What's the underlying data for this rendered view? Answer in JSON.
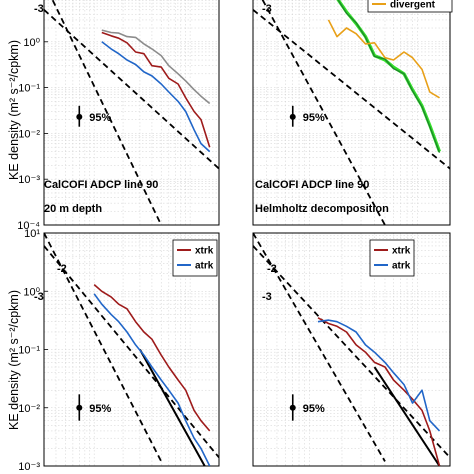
{
  "colors": {
    "xtrk": "#9e1b1b",
    "atrk": "#2166c8",
    "gray": "#8c8c8c",
    "rotational": "#1d8a2a",
    "rotational_hi": "#33e02a",
    "divergent": "#e8a018",
    "slope": "#000000"
  },
  "shared": {
    "ylabel": "KE density (m² s⁻²/cpkm)",
    "conf_label": "95%"
  },
  "chart_data": [
    {
      "id": "tl",
      "type": "line",
      "xscale": "log",
      "yscale": "log",
      "xlim": [
        0.003,
        0.2
      ],
      "ylim": [
        0.0001,
        10
      ],
      "grid": true,
      "y_ticks": [
        "10⁻⁴",
        "10⁻³",
        "10⁻²",
        "10⁻¹",
        "10⁰",
        "10¹"
      ],
      "annotations": [
        "CalCOFI ADCP line 90",
        "20 m depth",
        "-3"
      ],
      "series": [
        {
          "color_key": "gray",
          "width": 1.6,
          "x": [
            0.012,
            0.015,
            0.018,
            0.022,
            0.027,
            0.033,
            0.04,
            0.05,
            0.06,
            0.075,
            0.09,
            0.11,
            0.13,
            0.16
          ],
          "y": [
            1.8,
            1.6,
            1.55,
            1.3,
            1.25,
            0.9,
            0.7,
            0.5,
            0.3,
            0.2,
            0.14,
            0.09,
            0.065,
            0.045
          ]
        },
        {
          "color_key": "xtrk",
          "width": 1.6,
          "x": [
            0.012,
            0.015,
            0.018,
            0.022,
            0.027,
            0.033,
            0.04,
            0.05,
            0.06,
            0.075,
            0.09,
            0.11,
            0.13,
            0.16
          ],
          "y": [
            1.6,
            1.35,
            1.2,
            0.95,
            0.6,
            0.55,
            0.3,
            0.28,
            0.16,
            0.12,
            0.06,
            0.03,
            0.02,
            0.005
          ]
        },
        {
          "color_key": "atrk",
          "width": 1.6,
          "x": [
            0.012,
            0.015,
            0.018,
            0.022,
            0.027,
            0.033,
            0.04,
            0.05,
            0.06,
            0.075,
            0.09,
            0.11,
            0.13,
            0.16
          ],
          "y": [
            1.0,
            0.7,
            0.55,
            0.4,
            0.32,
            0.22,
            0.18,
            0.12,
            0.08,
            0.05,
            0.03,
            0.012,
            0.006,
            0.004
          ]
        }
      ],
      "dashed_lines": [
        {
          "x": [
            0.003,
            0.2
          ],
          "y": [
            5.0,
            0.0017
          ]
        },
        {
          "x": [
            0.003,
            0.05
          ],
          "y": [
            20.0,
            0.0001
          ]
        }
      ],
      "conf_bar": {
        "x": 0.007,
        "y_low": 0.014,
        "y_high": 0.04,
        "y_dot": 0.023
      }
    },
    {
      "id": "tr",
      "type": "line",
      "xscale": "log",
      "yscale": "log",
      "xlim": [
        0.003,
        0.2
      ],
      "ylim": [
        0.0001,
        10
      ],
      "grid": true,
      "y_ticks": [],
      "annotations": [
        "CalCOFI ADCP line 90",
        "Helmholtz decomposition",
        "-3"
      ],
      "legend": [
        {
          "label": "divergent",
          "color_key": "divergent"
        }
      ],
      "series": [
        {
          "color_key": "rotational_hi",
          "width": 3.2,
          "x": [
            0.018,
            0.022,
            0.027,
            0.033,
            0.04,
            0.05,
            0.06,
            0.075,
            0.09,
            0.11,
            0.13,
            0.16
          ],
          "y": [
            9.0,
            4.5,
            2.5,
            1.3,
            0.5,
            0.4,
            0.28,
            0.2,
            0.09,
            0.04,
            0.015,
            0.004
          ]
        },
        {
          "color_key": "rotational",
          "width": 1.4,
          "x": [
            0.018,
            0.022,
            0.027,
            0.033,
            0.04,
            0.05,
            0.06,
            0.075,
            0.09,
            0.11,
            0.13,
            0.16
          ],
          "y": [
            9.0,
            4.2,
            2.6,
            1.25,
            0.48,
            0.42,
            0.26,
            0.2,
            0.085,
            0.038,
            0.014,
            0.0038
          ]
        },
        {
          "color_key": "divergent",
          "width": 1.6,
          "x": [
            0.015,
            0.018,
            0.022,
            0.027,
            0.033,
            0.04,
            0.05,
            0.06,
            0.075,
            0.09,
            0.11,
            0.13,
            0.16
          ],
          "y": [
            3.0,
            1.3,
            2.0,
            1.5,
            0.9,
            0.95,
            0.45,
            0.4,
            0.6,
            0.45,
            0.25,
            0.08,
            0.06
          ]
        }
      ],
      "dashed_lines": [
        {
          "x": [
            0.003,
            0.2
          ],
          "y": [
            5.0,
            0.0017
          ]
        },
        {
          "x": [
            0.003,
            0.05
          ],
          "y": [
            20.0,
            0.0001
          ]
        }
      ],
      "conf_bar": {
        "x": 0.007,
        "y_low": 0.014,
        "y_high": 0.04,
        "y_dot": 0.023
      }
    },
    {
      "id": "bl",
      "type": "line",
      "xscale": "log",
      "yscale": "log",
      "xlim": [
        0.003,
        0.2
      ],
      "ylim": [
        0.001,
        10
      ],
      "grid": true,
      "y_ticks": [
        "10⁻³",
        "10⁻²",
        "10⁻¹",
        "10⁰",
        "10¹"
      ],
      "annotations": [
        "-2",
        "-3"
      ],
      "legend": [
        {
          "label": "xtrk",
          "color_key": "xtrk"
        },
        {
          "label": "atrk",
          "color_key": "atrk"
        }
      ],
      "series": [
        {
          "color_key": "xtrk",
          "width": 1.6,
          "x": [
            0.01,
            0.012,
            0.015,
            0.018,
            0.022,
            0.027,
            0.033,
            0.04,
            0.05,
            0.06,
            0.075,
            0.09,
            0.11,
            0.13,
            0.16
          ],
          "y": [
            1.3,
            1.0,
            0.8,
            0.6,
            0.5,
            0.3,
            0.2,
            0.15,
            0.08,
            0.05,
            0.03,
            0.02,
            0.009,
            0.006,
            0.004
          ]
        },
        {
          "color_key": "atrk",
          "width": 1.6,
          "x": [
            0.01,
            0.012,
            0.015,
            0.018,
            0.022,
            0.027,
            0.033,
            0.04,
            0.05,
            0.06,
            0.075,
            0.09,
            0.11,
            0.13,
            0.16
          ],
          "y": [
            0.9,
            0.6,
            0.4,
            0.3,
            0.2,
            0.12,
            0.08,
            0.05,
            0.03,
            0.02,
            0.012,
            0.006,
            0.003,
            0.002,
            0.001
          ]
        }
      ],
      "solid_lines": [
        {
          "x": [
            0.03,
            0.16
          ],
          "y": [
            0.1,
            0.0007
          ]
        }
      ],
      "dashed_lines": [
        {
          "x": [
            0.003,
            0.2
          ],
          "y": [
            6.0,
            0.0014
          ]
        },
        {
          "x": [
            0.003,
            0.05
          ],
          "y": [
            10.0,
            0.0012
          ]
        }
      ],
      "conf_bar": {
        "x": 0.007,
        "y_low": 0.006,
        "y_high": 0.017,
        "y_dot": 0.01
      }
    },
    {
      "id": "br",
      "type": "line",
      "xscale": "log",
      "yscale": "log",
      "xlim": [
        0.003,
        0.2
      ],
      "ylim": [
        0.001,
        10
      ],
      "grid": true,
      "y_ticks": [],
      "annotations": [
        "-2",
        "-3"
      ],
      "legend": [
        {
          "label": "xtrk",
          "color_key": "xtrk"
        },
        {
          "label": "atrk",
          "color_key": "atrk"
        }
      ],
      "series": [
        {
          "color_key": "xtrk",
          "width": 1.6,
          "x": [
            0.012,
            0.015,
            0.018,
            0.022,
            0.027,
            0.033,
            0.04,
            0.05,
            0.06,
            0.075,
            0.09,
            0.11,
            0.13,
            0.16
          ],
          "y": [
            0.35,
            0.28,
            0.25,
            0.2,
            0.12,
            0.09,
            0.06,
            0.05,
            0.03,
            0.02,
            0.014,
            0.009,
            0.004,
            0.001
          ]
        },
        {
          "color_key": "atrk",
          "width": 1.6,
          "x": [
            0.012,
            0.015,
            0.018,
            0.022,
            0.027,
            0.033,
            0.04,
            0.05,
            0.06,
            0.075,
            0.09,
            0.11,
            0.13,
            0.16
          ],
          "y": [
            0.3,
            0.32,
            0.3,
            0.25,
            0.2,
            0.12,
            0.09,
            0.06,
            0.04,
            0.025,
            0.012,
            0.02,
            0.006,
            0.004
          ]
        }
      ],
      "solid_lines": [
        {
          "x": [
            0.04,
            0.16
          ],
          "y": [
            0.05,
            0.001
          ]
        }
      ],
      "dashed_lines": [
        {
          "x": [
            0.003,
            0.2
          ],
          "y": [
            6.0,
            0.0014
          ]
        },
        {
          "x": [
            0.003,
            0.05
          ],
          "y": [
            10.0,
            0.0012
          ]
        }
      ],
      "conf_bar": {
        "x": 0.007,
        "y_low": 0.006,
        "y_high": 0.017,
        "y_dot": 0.01
      }
    }
  ]
}
